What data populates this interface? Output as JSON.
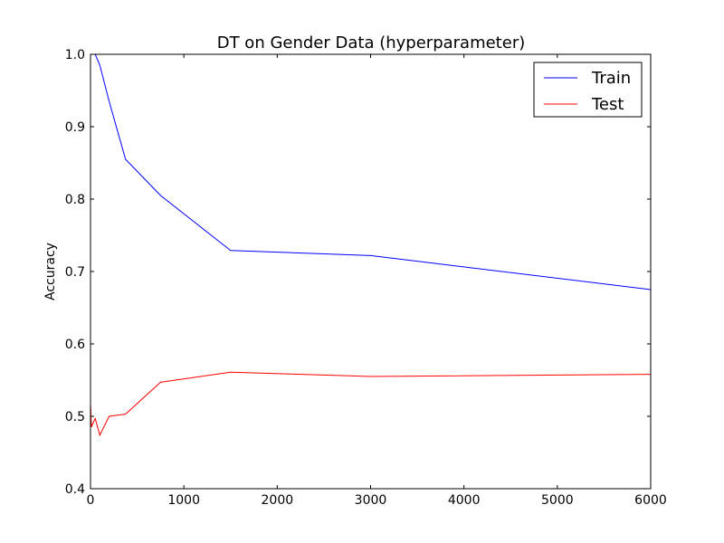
{
  "chart_data": {
    "type": "line",
    "title": "DT on Gender Data (hyperparameter)",
    "xlabel": "",
    "ylabel": "Accuracy",
    "xlim": [
      0,
      6000
    ],
    "ylim": [
      0.4,
      1.0
    ],
    "xticks": [
      0,
      1000,
      2000,
      3000,
      4000,
      5000,
      6000
    ],
    "xtick_labels": [
      "0",
      "1000",
      "2000",
      "3000",
      "4000",
      "5000",
      "6000"
    ],
    "yticks": [
      0.4,
      0.5,
      0.6,
      0.7,
      0.8,
      0.9,
      1.0
    ],
    "ytick_labels": [
      "0.4",
      "0.5",
      "0.6",
      "0.7",
      "0.8",
      "0.9",
      "1.0"
    ],
    "grid": false,
    "legend_position": "top-right",
    "series": [
      {
        "name": "Train",
        "color": "#0000ff",
        "x": [
          1,
          10,
          25,
          50,
          100,
          200,
          375,
          750,
          1500,
          3000,
          6000
        ],
        "y": [
          1.0,
          1.0,
          1.0,
          1.0,
          0.985,
          0.935,
          0.855,
          0.805,
          0.729,
          0.722,
          0.675
        ]
      },
      {
        "name": "Test",
        "color": "#ff0000",
        "x": [
          1,
          10,
          25,
          50,
          100,
          200,
          375,
          750,
          1500,
          3000,
          6000
        ],
        "y": [
          0.515,
          0.485,
          0.49,
          0.497,
          0.474,
          0.5,
          0.503,
          0.547,
          0.561,
          0.555,
          0.558
        ]
      }
    ]
  }
}
